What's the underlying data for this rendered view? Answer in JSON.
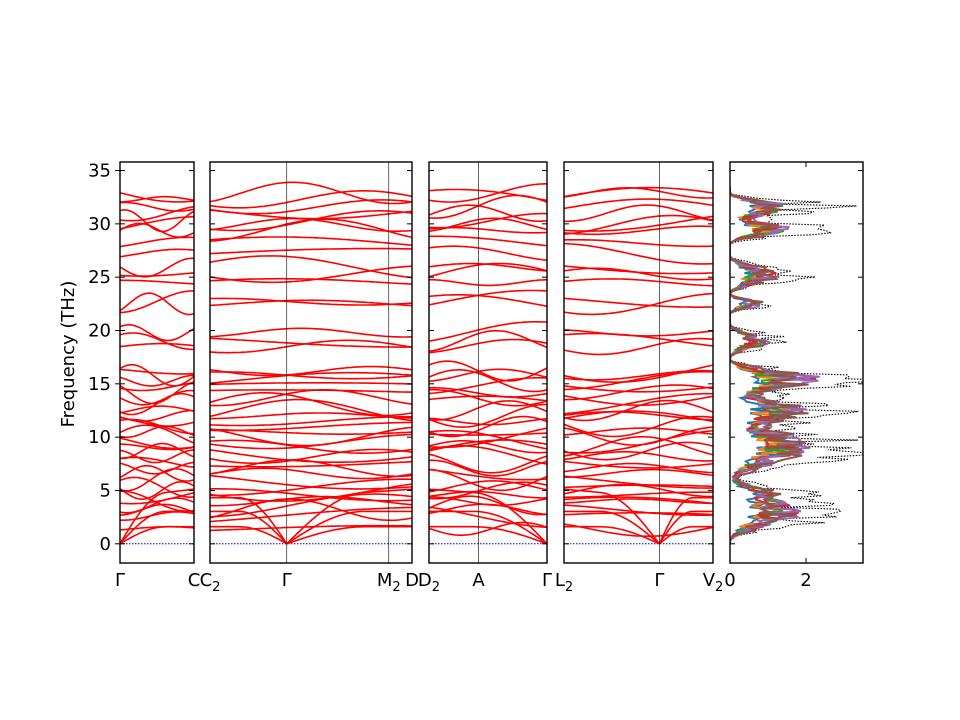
{
  "chart_data": {
    "type": "line",
    "title": "",
    "ylabel": "Frequency (THz)",
    "ylim": [
      -1.8,
      35.8
    ],
    "yticks": [
      0,
      5,
      10,
      15,
      20,
      25,
      30,
      35
    ],
    "ytick_labels": [
      "0",
      "5",
      "10",
      "15",
      "20",
      "25",
      "30",
      "35"
    ],
    "colors": {
      "bands": "#ff0000",
      "zero_line": "#0000cc",
      "dos_total": "#000000",
      "pdos": [
        "#1f77b4",
        "#ff7f0e",
        "#2ca02c",
        "#d62728",
        "#9467bd",
        "#8c564b"
      ]
    },
    "band_panels": [
      {
        "segments": [
          {
            "start": "Γ",
            "end": "C"
          }
        ],
        "tick_labels": [
          {
            "text": "Γ",
            "sub": ""
          },
          {
            "text": "C",
            "sub": ""
          }
        ]
      },
      {
        "segments": [
          {
            "start": "C₂",
            "end": "Γ"
          },
          {
            "start": "Γ",
            "end": "M₂"
          },
          {
            "start": "M₂",
            "end": "D"
          }
        ],
        "tick_labels": [
          {
            "text": "C",
            "sub": "2"
          },
          {
            "text": "Γ",
            "sub": ""
          },
          {
            "text": "M",
            "sub": "2"
          },
          {
            "text": "D",
            "sub": ""
          }
        ]
      },
      {
        "segments": [
          {
            "start": "D₂",
            "end": "A"
          },
          {
            "start": "A",
            "end": "Γ"
          }
        ],
        "tick_labels": [
          {
            "text": "D",
            "sub": "2"
          },
          {
            "text": "A",
            "sub": ""
          },
          {
            "text": "Γ",
            "sub": ""
          }
        ]
      },
      {
        "segments": [
          {
            "start": "L₂",
            "end": "Γ"
          },
          {
            "start": "Γ",
            "end": "V₂"
          }
        ],
        "tick_labels": [
          {
            "text": "L",
            "sub": "2"
          },
          {
            "text": "Γ",
            "sub": ""
          },
          {
            "text": "V",
            "sub": "2"
          }
        ]
      }
    ],
    "band_levels_thz": [
      1.4,
      2.6,
      3.2,
      3.6,
      4.0,
      4.6,
      5.0,
      5.3,
      6.0,
      6.6,
      7.1,
      7.6,
      8.2,
      8.7,
      9.1,
      9.6,
      10.1,
      10.5,
      11.0,
      11.5,
      12.0,
      12.5,
      13.1,
      13.7,
      14.2,
      14.8,
      15.3,
      15.8,
      16.2,
      18.5,
      19.0,
      19.8,
      22.5,
      22.7,
      24.5,
      25.3,
      25.9,
      27.2,
      28.2,
      29.4,
      29.9,
      30.3,
      31.0,
      31.6,
      32.3,
      32.9
    ],
    "dos_panel": {
      "xlim": [
        0,
        3.5
      ],
      "xticks": [
        0,
        2
      ],
      "xtick_labels": [
        "0",
        "2"
      ],
      "bands_thz": [
        {
          "center": 3.0,
          "width": 2.8,
          "amp": 2.6
        },
        {
          "center": 5.0,
          "width": 1.4,
          "amp": 1.2
        },
        {
          "center": 9.0,
          "width": 3.4,
          "amp": 3.0
        },
        {
          "center": 12.5,
          "width": 2.0,
          "amp": 2.8
        },
        {
          "center": 15.3,
          "width": 2.0,
          "amp": 3.4
        },
        {
          "center": 19.0,
          "width": 1.6,
          "amp": 1.4
        },
        {
          "center": 22.5,
          "width": 0.9,
          "amp": 1.3
        },
        {
          "center": 25.2,
          "width": 1.8,
          "amp": 1.8
        },
        {
          "center": 29.5,
          "width": 1.4,
          "amp": 2.3
        },
        {
          "center": 31.5,
          "width": 1.4,
          "amp": 2.6
        }
      ]
    }
  }
}
